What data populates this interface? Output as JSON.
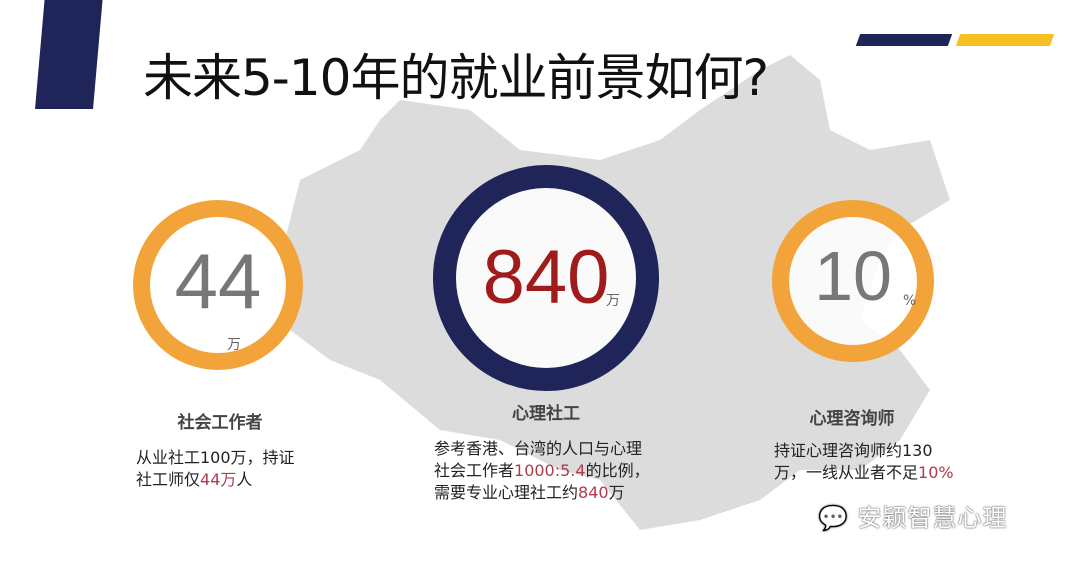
{
  "title": "未来5-10年的就业前景如何?",
  "colors": {
    "navy": "#1f2459",
    "orange": "#f2a33a",
    "yellow": "#f5c020",
    "highlight": "#b23a4a"
  },
  "stats": [
    {
      "value": "44",
      "unit": "万",
      "caption": "社会工作者",
      "desc": [
        {
          "t": "从业社工100万，持证"
        },
        {
          "t": "社工师仅"
        },
        {
          "t": "44万",
          "hl": true
        },
        {
          "t": "人"
        }
      ]
    },
    {
      "value": "840",
      "unit": "万",
      "caption": "心理社工",
      "desc": [
        {
          "t": "参考香港、台湾的人口与心理"
        },
        {
          "t": "社会工作者"
        },
        {
          "t": "1000:5.4",
          "hl": true
        },
        {
          "t": "的比例，"
        },
        {
          "t": "需要专业心理社工约"
        },
        {
          "t": "840",
          "hl": true
        },
        {
          "t": "万"
        }
      ]
    },
    {
      "value": "10",
      "unit": "%",
      "caption": "心理咨询师",
      "desc": [
        {
          "t": "持证心理咨询师约130"
        },
        {
          "t": "万，一线从业者不足"
        },
        {
          "t": "10%",
          "hl": true
        }
      ]
    }
  ],
  "watermark": {
    "icon": "wechat-icon",
    "text": "安颖智慧心理"
  }
}
